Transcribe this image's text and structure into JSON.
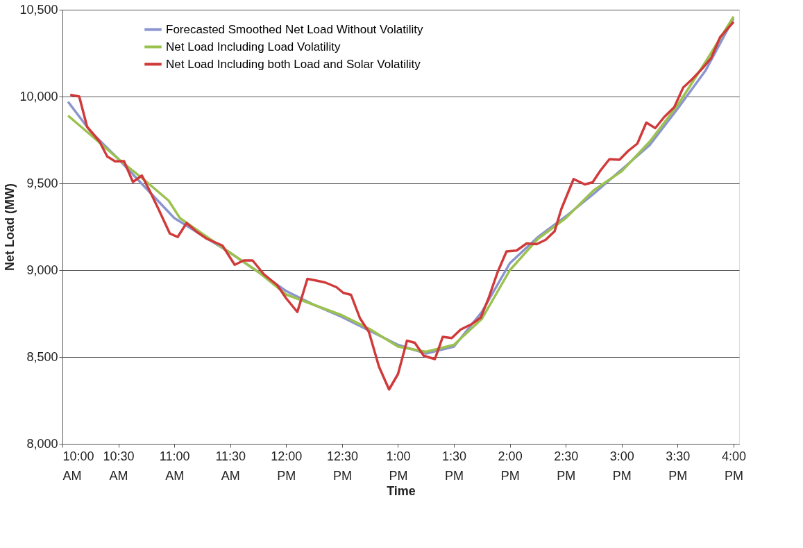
{
  "chart_data": {
    "type": "line",
    "xlabel": "Time",
    "ylabel": "Net Load (MW)",
    "xlim": [
      10,
      16.05
    ],
    "ylim": [
      8000,
      10500
    ],
    "xticks": [
      {
        "value": 10,
        "label": "10:00 AM"
      },
      {
        "value": 10.5,
        "label": "10:30 AM"
      },
      {
        "value": 11,
        "label": "11:00 AM"
      },
      {
        "value": 11.5,
        "label": "11:30 AM"
      },
      {
        "value": 12,
        "label": "12:00 PM"
      },
      {
        "value": 12.5,
        "label": "12:30 PM"
      },
      {
        "value": 13,
        "label": "1:00 PM"
      },
      {
        "value": 13.5,
        "label": "1:30 PM"
      },
      {
        "value": 14,
        "label": "2:00 PM"
      },
      {
        "value": 14.5,
        "label": "2:30 PM"
      },
      {
        "value": 15,
        "label": "3:00 PM"
      },
      {
        "value": 15.5,
        "label": "3:30 PM"
      },
      {
        "value": 16,
        "label": "4:00 PM"
      }
    ],
    "yticks": [
      {
        "value": 8000,
        "label": "8,000"
      },
      {
        "value": 8500,
        "label": "8,500"
      },
      {
        "value": 9000,
        "label": "9,000"
      },
      {
        "value": 9500,
        "label": "9,500"
      },
      {
        "value": 10000,
        "label": "10,000"
      },
      {
        "value": 10500,
        "label": "10,500"
      }
    ],
    "grid": "y",
    "legend": "top left",
    "marker": "none",
    "line_style": "solid",
    "series": [
      {
        "name": "Forecasted Smoothed Net Load Without Volatility",
        "color": "#8a94cf",
        "x": [
          10.05,
          10.25,
          10.5,
          10.75,
          11.0,
          11.25,
          11.5,
          11.75,
          12.0,
          12.25,
          12.5,
          12.75,
          13.0,
          13.25,
          13.5,
          13.75,
          14.0,
          14.25,
          14.5,
          14.75,
          15.0,
          15.25,
          15.5,
          15.75,
          16.0
        ],
        "values": [
          9970,
          9800,
          9640,
          9470,
          9300,
          9200,
          9100,
          8990,
          8880,
          8800,
          8730,
          8650,
          8570,
          8520,
          8560,
          8760,
          9040,
          9190,
          9310,
          9440,
          9580,
          9720,
          9930,
          10150,
          10450
        ]
      },
      {
        "name": "Net Load Including Load Volatility",
        "color": "#9bc24f",
        "x": [
          10.05,
          10.25,
          10.5,
          10.75,
          10.95,
          11.05,
          11.25,
          11.5,
          11.75,
          12.0,
          12.25,
          12.5,
          12.75,
          13.0,
          13.25,
          13.5,
          13.75,
          14.0,
          14.25,
          14.5,
          14.75,
          15.0,
          15.25,
          15.5,
          15.75,
          16.0
        ],
        "values": [
          9890,
          9780,
          9640,
          9510,
          9400,
          9300,
          9210,
          9100,
          8990,
          8860,
          8800,
          8740,
          8660,
          8560,
          8530,
          8570,
          8720,
          9000,
          9180,
          9300,
          9460,
          9570,
          9740,
          9950,
          10200,
          10460
        ]
      },
      {
        "name": "Net Load Including both Load and Solar Volatility",
        "color": "#d03a3a",
        "x": [
          10.07,
          10.15,
          10.22,
          10.33,
          10.4,
          10.47,
          10.55,
          10.63,
          10.71,
          10.77,
          10.86,
          10.96,
          11.03,
          11.11,
          11.2,
          11.29,
          11.43,
          11.54,
          11.62,
          11.7,
          11.8,
          11.92,
          12.0,
          12.1,
          12.19,
          12.27,
          12.35,
          12.45,
          12.51,
          12.58,
          12.66,
          12.74,
          12.83,
          12.92,
          13.0,
          13.08,
          13.15,
          13.23,
          13.33,
          13.4,
          13.48,
          13.56,
          13.66,
          13.74,
          13.81,
          13.89,
          13.97,
          14.06,
          14.15,
          14.24,
          14.32,
          14.4,
          14.46,
          14.57,
          14.67,
          14.74,
          14.81,
          14.89,
          14.98,
          15.06,
          15.14,
          15.22,
          15.3,
          15.38,
          15.47,
          15.55,
          15.63,
          15.72,
          15.8,
          15.88,
          16.0
        ],
        "values": [
          10010,
          10000,
          9826,
          9742,
          9655,
          9627,
          9628,
          9508,
          9545,
          9470,
          9350,
          9211,
          9191,
          9272,
          9221,
          9181,
          9142,
          9031,
          9056,
          9056,
          8977,
          8914,
          8838,
          8759,
          8950,
          8940,
          8929,
          8902,
          8870,
          8858,
          8723,
          8644,
          8444,
          8313,
          8402,
          8594,
          8582,
          8507,
          8488,
          8616,
          8609,
          8658,
          8690,
          8727,
          8839,
          8988,
          9108,
          9113,
          9154,
          9150,
          9175,
          9224,
          9352,
          9525,
          9494,
          9506,
          9574,
          9639,
          9636,
          9688,
          9729,
          9850,
          9818,
          9882,
          9939,
          10052,
          10100,
          10161,
          10222,
          10342,
          10430
        ]
      }
    ]
  }
}
